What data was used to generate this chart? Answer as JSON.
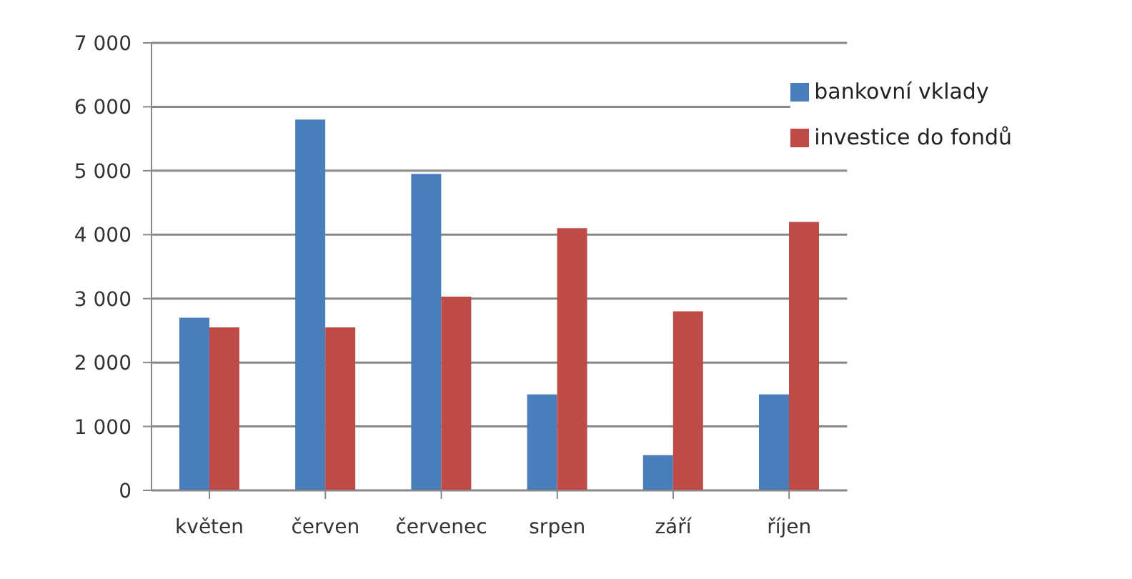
{
  "chart_data": {
    "type": "bar",
    "categories": [
      "květen",
      "červen",
      "červenec",
      "srpen",
      "září",
      "říjen"
    ],
    "series": [
      {
        "name": "bankovní vklady",
        "color": "#4a7ebb",
        "values": [
          2700,
          5800,
          4950,
          1500,
          550,
          1500
        ]
      },
      {
        "name": "investice do fondů",
        "color": "#be4b48",
        "values": [
          2550,
          2550,
          3030,
          4100,
          2800,
          4200
        ]
      }
    ],
    "ylim": [
      0,
      7000
    ],
    "yticks": [
      {
        "value": 0,
        "label": "0"
      },
      {
        "value": 1000,
        "label": "1 000"
      },
      {
        "value": 2000,
        "label": "2 000"
      },
      {
        "value": 3000,
        "label": "3 000"
      },
      {
        "value": 4000,
        "label": "4 000"
      },
      {
        "value": 5000,
        "label": "5 000"
      },
      {
        "value": 6000,
        "label": "6 000"
      },
      {
        "value": 7000,
        "label": "7 000"
      }
    ],
    "grid": "y",
    "legend": "top right"
  }
}
